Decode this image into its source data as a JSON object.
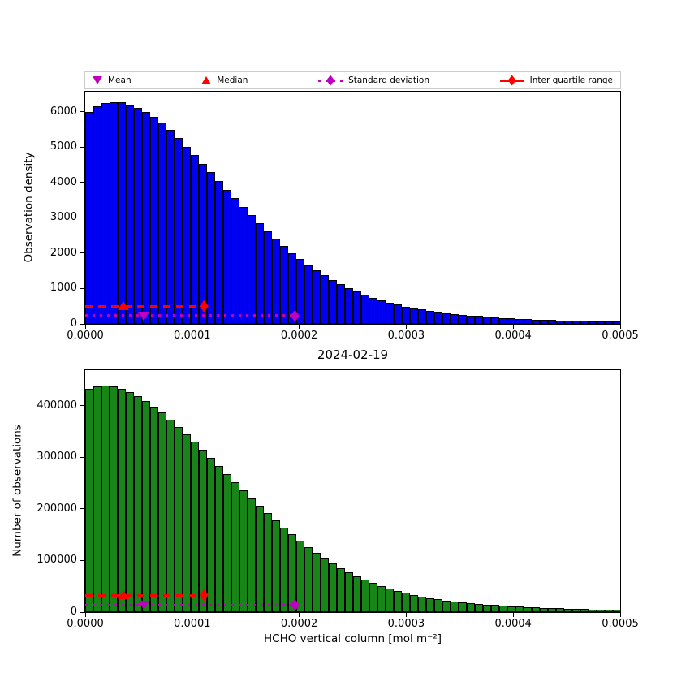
{
  "figure": {
    "title": "2024-02-19",
    "background": "#ffffff"
  },
  "legend": {
    "border_color": "#cccccc",
    "items": [
      {
        "label": "Mean",
        "marker": "triangle-down-icon",
        "color": "#bf00bf"
      },
      {
        "label": "Median",
        "marker": "triangle-up-icon",
        "color": "#ff0000"
      },
      {
        "label": "Standard deviation",
        "marker": "thin-diamond-icon",
        "color": "#bf00bf",
        "linestyle": "dotted"
      },
      {
        "label": "Inter quartile range",
        "marker": "thin-diamond-icon",
        "color": "#ff0000",
        "linestyle": "dashed"
      }
    ]
  },
  "chart_data": [
    {
      "type": "bar",
      "name": "observation-density-histogram",
      "title": "",
      "ylabel": "Observation density",
      "xlabel": "",
      "bar_color": "#0000f2",
      "bar_edge_color": "#000000",
      "xlim": [
        0,
        0.0005
      ],
      "ylim": [
        0,
        6570
      ],
      "bin_width": 7.58e-06,
      "x_tick_labels": [
        "0.0000",
        "0.0001",
        "0.0002",
        "0.0003",
        "0.0004",
        "0.0005"
      ],
      "y_ticks": [
        0,
        1000,
        2000,
        3000,
        4000,
        5000,
        6000
      ],
      "grid": false,
      "values": [
        6000,
        6160,
        6250,
        6280,
        6270,
        6210,
        6110,
        5990,
        5860,
        5690,
        5480,
        5250,
        5010,
        4770,
        4530,
        4290,
        4050,
        3800,
        3550,
        3310,
        3070,
        2840,
        2620,
        2410,
        2210,
        2010,
        1830,
        1660,
        1510,
        1370,
        1240,
        1120,
        1010,
        910,
        820,
        740,
        665,
        600,
        540,
        490,
        445,
        405,
        370,
        338,
        309,
        283,
        260,
        239,
        220,
        203,
        187,
        172,
        159,
        147,
        136,
        126,
        117,
        108,
        100,
        93,
        87,
        81,
        76,
        71,
        66,
        62
      ],
      "stats": {
        "mean_x": 5.5e-05,
        "median_x": 3.6e-05,
        "iqr_marker_x": 0.000111,
        "std_marker_x": 0.000196,
        "iqr_line_y": 500,
        "std_line_y": 230,
        "mean_color": "#bf00bf",
        "median_color": "#ff0000",
        "iqr_color": "#ff0000",
        "std_color": "#bf00bf"
      }
    },
    {
      "type": "bar",
      "name": "number-of-observations-histogram",
      "title": "",
      "ylabel": "Number of observations",
      "xlabel": "HCHO vertical column [mol m⁻²]",
      "bar_color": "#178517",
      "bar_edge_color": "#000000",
      "xlim": [
        0,
        0.0005
      ],
      "ylim": [
        0,
        469000
      ],
      "bin_width": 7.58e-06,
      "x_tick_labels": [
        "0.0000",
        "0.0001",
        "0.0002",
        "0.0003",
        "0.0004",
        "0.0005"
      ],
      "y_ticks": [
        0,
        100000,
        200000,
        300000,
        400000
      ],
      "grid": false,
      "values": [
        433000,
        437500,
        439500,
        437500,
        433500,
        427000,
        419000,
        409500,
        398500,
        386500,
        373500,
        359500,
        345000,
        330000,
        315000,
        299500,
        284000,
        268000,
        252000,
        236500,
        221000,
        206000,
        191500,
        177500,
        164000,
        151000,
        138500,
        126500,
        115000,
        104500,
        94500,
        85500,
        77000,
        69500,
        62500,
        56000,
        50500,
        45500,
        41000,
        37000,
        33500,
        30500,
        27500,
        25000,
        22800,
        20800,
        19000,
        17400,
        16000,
        14700,
        13500,
        12400,
        11400,
        10500,
        9700,
        9000,
        8300,
        7700,
        7100,
        6600,
        6100,
        5700,
        5300,
        4900,
        4600,
        4300
      ],
      "stats": {
        "mean_x": 5.5e-05,
        "median_x": 3.6e-05,
        "iqr_marker_x": 0.000111,
        "std_marker_x": 0.000196,
        "iqr_line_y": 33000,
        "std_line_y": 13500,
        "mean_color": "#bf00bf",
        "median_color": "#ff0000",
        "iqr_color": "#ff0000",
        "std_color": "#bf00bf"
      }
    }
  ]
}
